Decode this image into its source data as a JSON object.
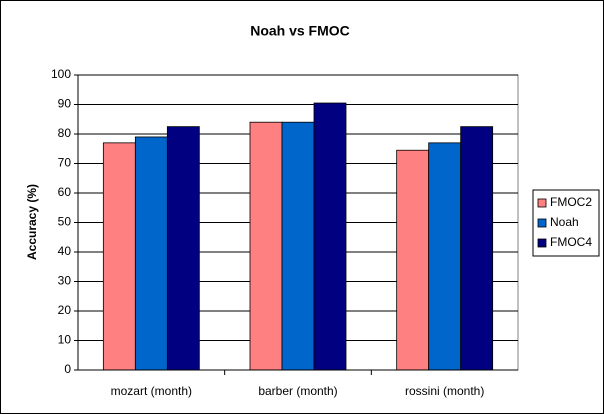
{
  "chart_data": {
    "type": "bar",
    "title": "Noah vs FMOC",
    "y_label": "Accuracy (%)",
    "categories": [
      "mozart (month)",
      "barber (month)",
      "rossini (month)"
    ],
    "series": [
      {
        "name": "FMOC2",
        "color": "#ff8080",
        "values": [
          77,
          84,
          74.5
        ]
      },
      {
        "name": "Noah",
        "color": "#0066cc",
        "values": [
          79,
          84,
          77
        ]
      },
      {
        "name": "FMOC4",
        "color": "#000080",
        "values": [
          82.5,
          90.5,
          82.5
        ]
      }
    ],
    "ylim": [
      0,
      100
    ],
    "yticks": [
      0,
      10,
      20,
      30,
      40,
      50,
      60,
      70,
      80,
      90,
      100
    ],
    "grid": true,
    "legend": "right"
  }
}
